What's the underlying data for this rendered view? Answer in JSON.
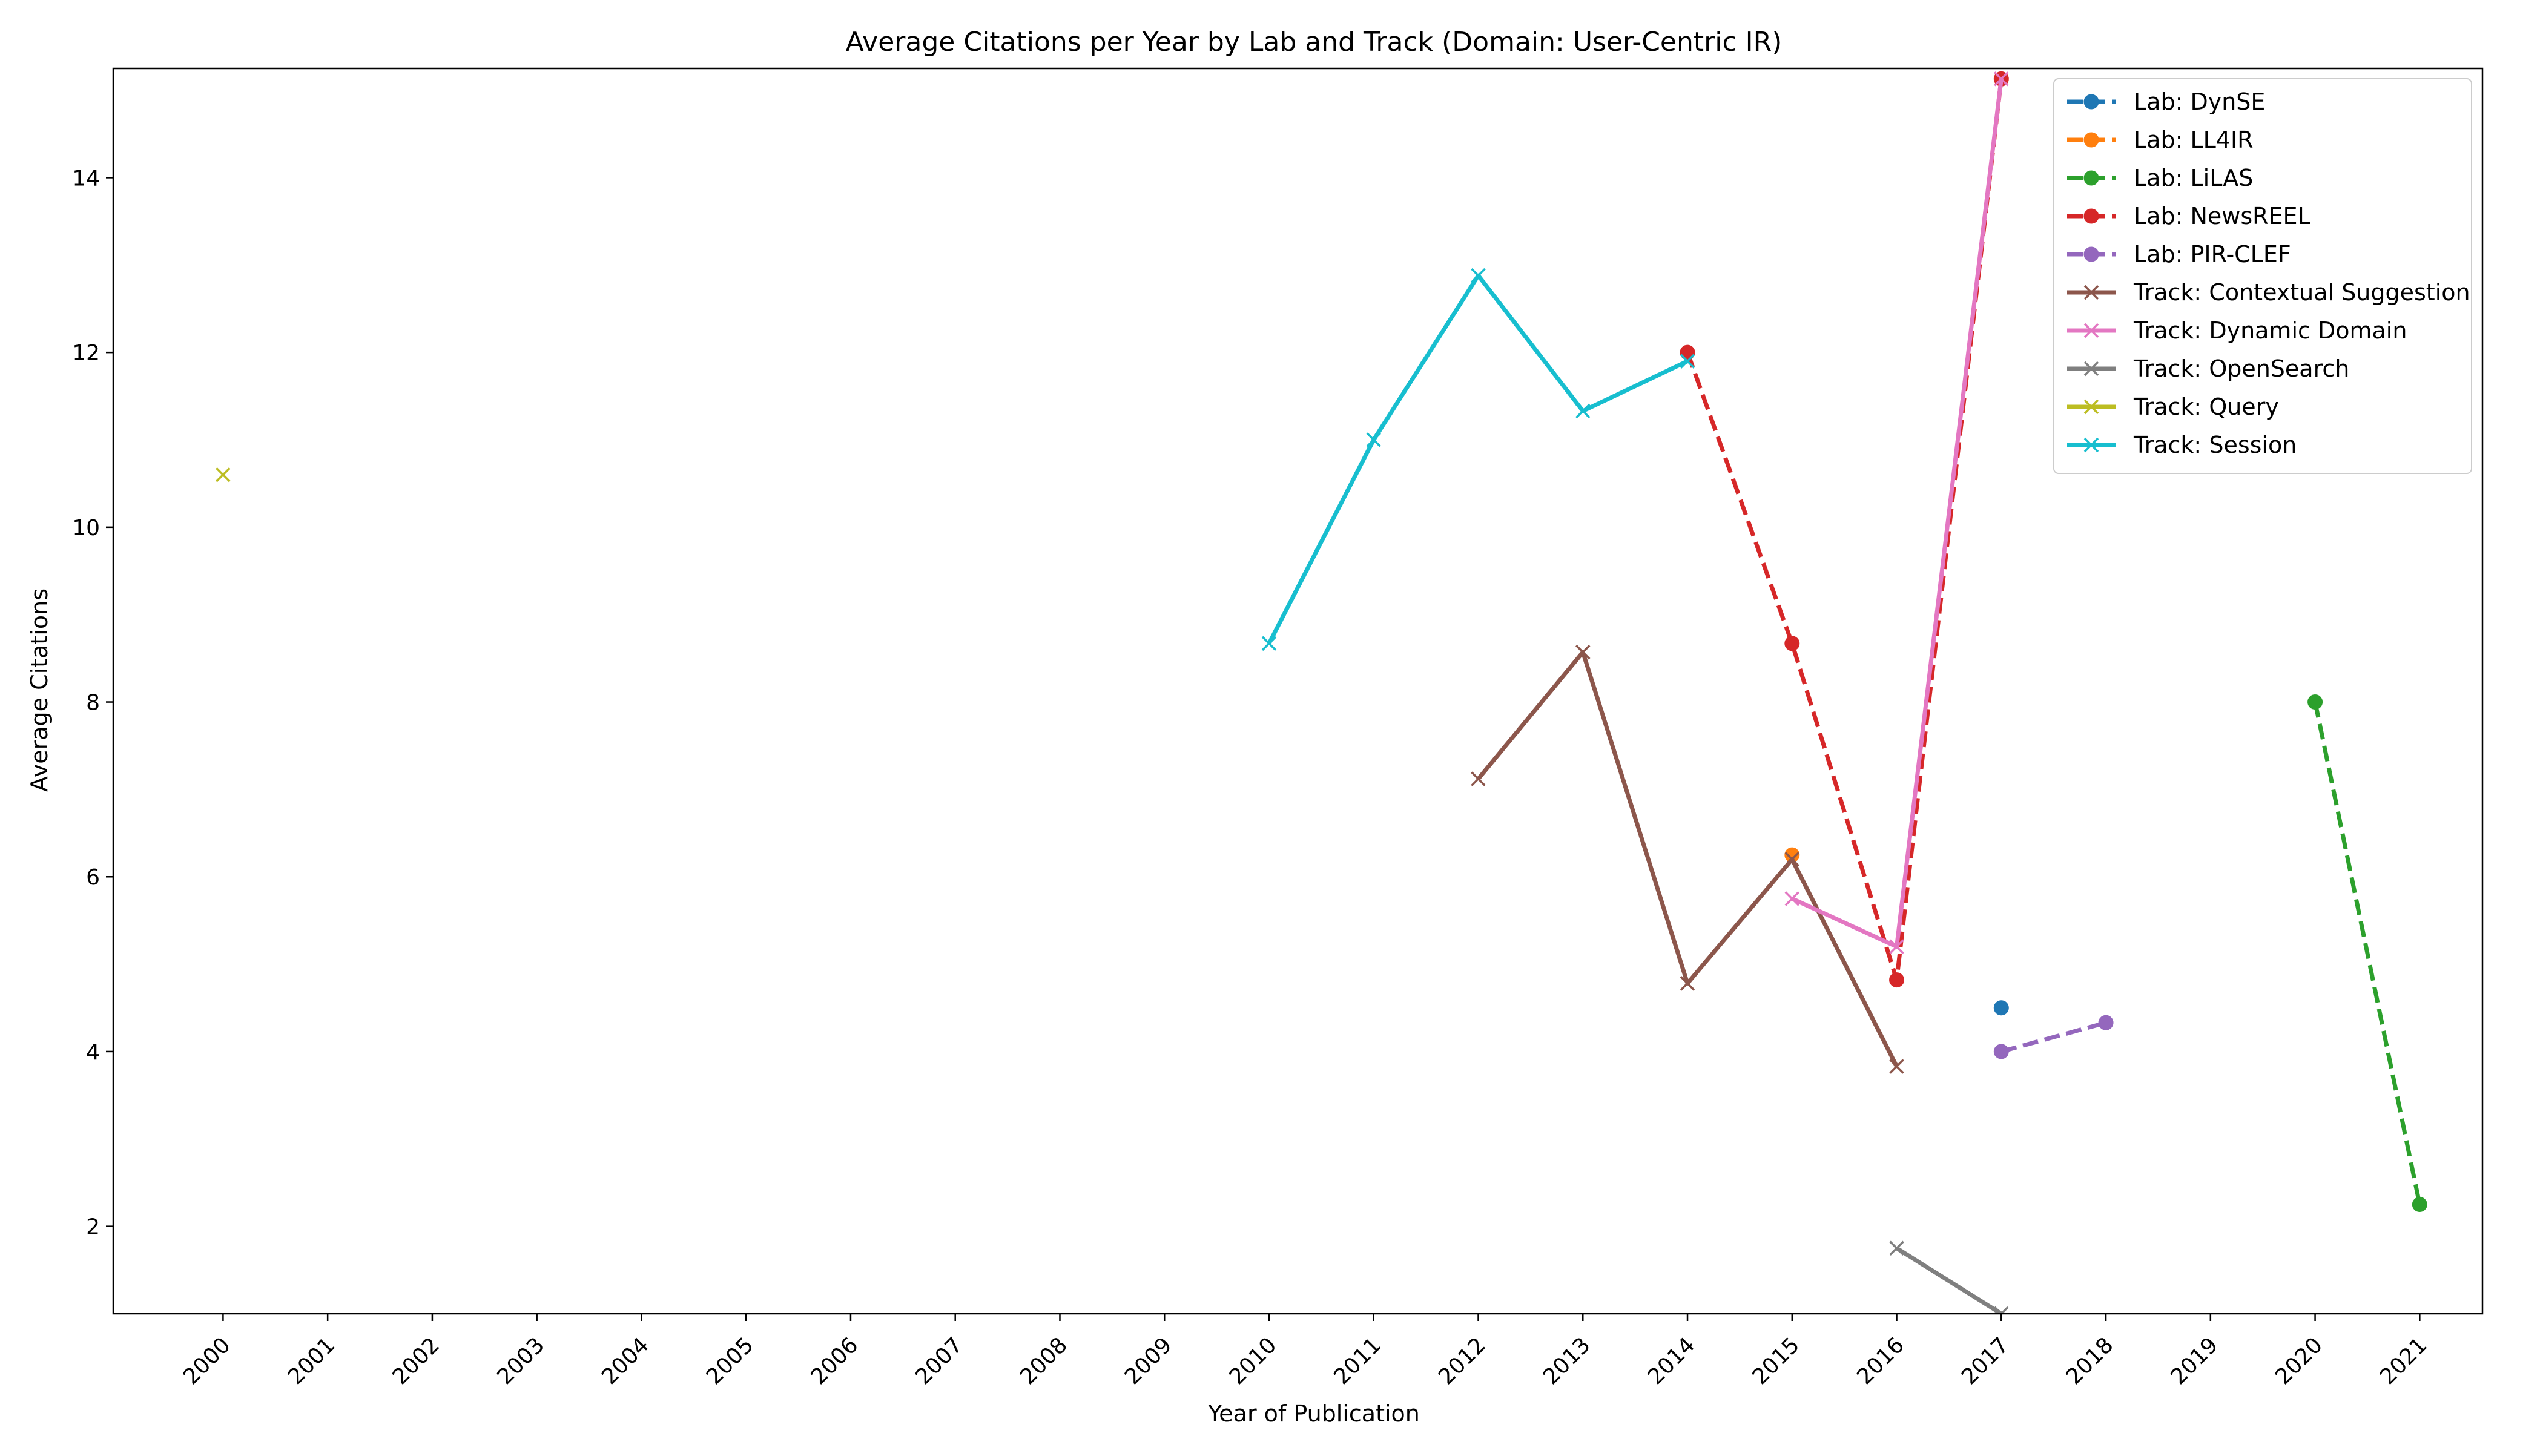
{
  "chart_data": {
    "type": "line",
    "title": "Average Citations per Year by Lab and Track (Domain: User-Centric IR)",
    "xlabel": "Year of Publication",
    "ylabel": "Average Citations",
    "x_ticks": [
      "2000",
      "2001",
      "2002",
      "2003",
      "2004",
      "2005",
      "2006",
      "2007",
      "2008",
      "2009",
      "2010",
      "2011",
      "2012",
      "2013",
      "2014",
      "2015",
      "2016",
      "2017",
      "2018",
      "2019",
      "2020",
      "2021"
    ],
    "y_ticks": [
      2,
      4,
      6,
      8,
      10,
      12,
      14
    ],
    "xlim": [
      1998.95,
      2021.6
    ],
    "ylim": [
      1.0,
      15.25
    ],
    "grid": false,
    "legend_position": "top-right",
    "series": [
      {
        "name": "Lab: DynSE",
        "color": "#1f77b4",
        "linestyle": "dashed",
        "marker": "circle",
        "points": [
          [
            2017,
            4.5
          ]
        ]
      },
      {
        "name": "Lab: LL4IR",
        "color": "#ff7f0e",
        "linestyle": "dashed",
        "marker": "circle",
        "points": [
          [
            2015,
            6.25
          ]
        ]
      },
      {
        "name": "Lab: LiLAS",
        "color": "#2ca02c",
        "linestyle": "dashed",
        "marker": "circle",
        "points": [
          [
            2020,
            8.0
          ],
          [
            2021,
            2.25
          ]
        ]
      },
      {
        "name": "Lab: NewsREEL",
        "color": "#d62728",
        "linestyle": "dashed",
        "marker": "circle",
        "points": [
          [
            2014,
            12.0
          ],
          [
            2015,
            8.67
          ],
          [
            2016,
            4.82
          ],
          [
            2017,
            15.13
          ]
        ]
      },
      {
        "name": "Lab: PIR-CLEF",
        "color": "#9467bd",
        "linestyle": "dashed",
        "marker": "circle",
        "points": [
          [
            2017,
            4.0
          ],
          [
            2018,
            4.33
          ]
        ]
      },
      {
        "name": "Track: Contextual Suggestion",
        "color": "#8c564b",
        "linestyle": "solid",
        "marker": "x",
        "points": [
          [
            2012,
            7.12
          ],
          [
            2013,
            8.57
          ],
          [
            2014,
            4.78
          ],
          [
            2015,
            6.2
          ],
          [
            2016,
            3.83
          ]
        ]
      },
      {
        "name": "Track: Dynamic Domain",
        "color": "#e377c2",
        "linestyle": "solid",
        "marker": "x",
        "points": [
          [
            2015,
            5.75
          ],
          [
            2016,
            5.2
          ],
          [
            2017,
            15.13
          ]
        ]
      },
      {
        "name": "Track: OpenSearch",
        "color": "#7f7f7f",
        "linestyle": "solid",
        "marker": "x",
        "points": [
          [
            2016,
            1.75
          ],
          [
            2017,
            1.0
          ]
        ]
      },
      {
        "name": "Track: Query",
        "color": "#bcbd22",
        "linestyle": "solid",
        "marker": "x",
        "points": [
          [
            2000,
            10.6
          ]
        ]
      },
      {
        "name": "Track: Session",
        "color": "#17becf",
        "linestyle": "solid",
        "marker": "x",
        "points": [
          [
            2010,
            8.67
          ],
          [
            2011,
            11.0
          ],
          [
            2012,
            12.88
          ],
          [
            2013,
            11.33
          ],
          [
            2014,
            11.9
          ]
        ]
      }
    ]
  }
}
